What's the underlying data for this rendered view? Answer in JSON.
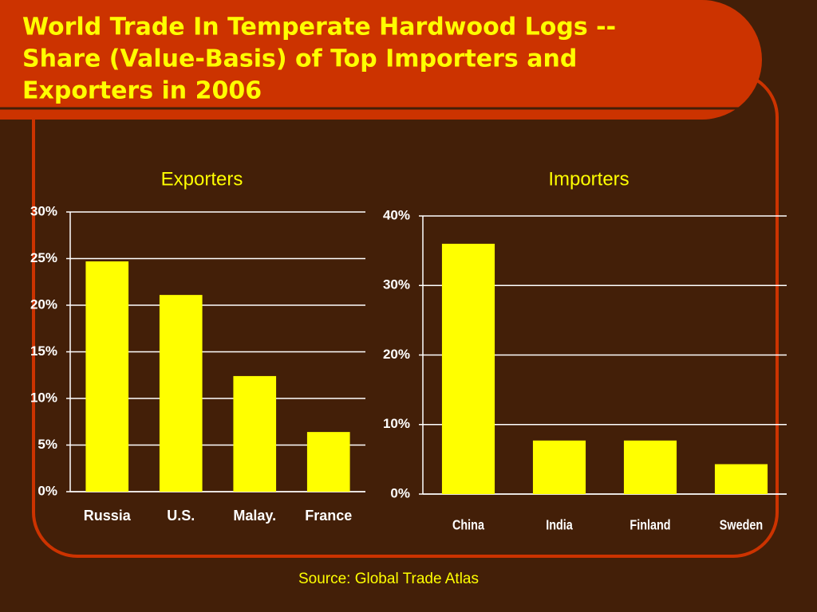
{
  "title": [
    "World Trade In Temperate Hardwood Logs --",
    "Share (Value-Basis) of Top Importers and",
    "Exporters in 2006"
  ],
  "source": "Source: Global Trade Atlas",
  "chart_data": [
    {
      "type": "bar",
      "title": "Exporters",
      "categories": [
        "Russia",
        "U.S.",
        "Malay.",
        "France"
      ],
      "values": [
        24.7,
        21.1,
        12.4,
        6.4
      ],
      "color": "#ffff00",
      "grid": true,
      "ylim": [
        0,
        30
      ],
      "yticks": [
        {
          "value": 0,
          "label": "0%"
        },
        {
          "value": 5,
          "label": "5%"
        },
        {
          "value": 10,
          "label": "10%"
        },
        {
          "value": 15,
          "label": "15%"
        },
        {
          "value": 20,
          "label": "20%"
        },
        {
          "value": 25,
          "label": "25%"
        },
        {
          "value": 30,
          "label": "30%"
        }
      ]
    },
    {
      "type": "bar",
      "title": "Importers",
      "categories": [
        "China",
        "India",
        "Finland",
        "Sweden"
      ],
      "values": [
        36,
        7.7,
        7.7,
        4.3
      ],
      "color": "#ffff00",
      "grid": true,
      "ylim": [
        0,
        40
      ],
      "yticks": [
        {
          "value": 0,
          "label": "0%"
        },
        {
          "value": 10,
          "label": "10%"
        },
        {
          "value": 20,
          "label": "20%"
        },
        {
          "value": 30,
          "label": "30%"
        },
        {
          "value": 40,
          "label": "40%"
        }
      ]
    }
  ]
}
